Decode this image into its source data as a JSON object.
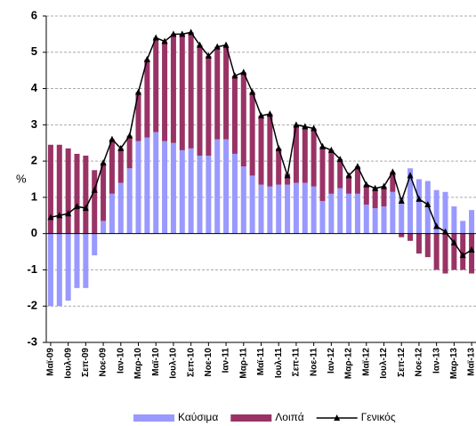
{
  "chart_data": {
    "type": "bar_line",
    "y_label": "%",
    "categories": [
      "Μαϊ-09",
      null,
      "Ιουλ-09",
      null,
      "Σεπ-09",
      null,
      "Νοε-09",
      null,
      "Ιαν-10",
      null,
      "Μαρ-10",
      null,
      "Μαϊ-10",
      null,
      "Ιουλ-10",
      null,
      "Σεπ-10",
      null,
      "Νοε-10",
      null,
      "Ιαν-11",
      null,
      "Μαρ-11",
      null,
      "Μαϊ-11",
      null,
      "Ιουλ-11",
      null,
      "Σεπ-11",
      null,
      "Νοε-11",
      null,
      "Ιαν-12",
      null,
      "Μαρ-12",
      null,
      "Μαϊ-12",
      null,
      "Ιουλ-12",
      null,
      "Σεπ-12",
      null,
      "Νοε-12",
      null,
      "Ιαν-13",
      null,
      "Μαρ-13",
      null,
      "Μαϊ-13"
    ],
    "series": [
      {
        "name": "Καύσιμα",
        "color": "#9999ff",
        "kind": "bar",
        "values": [
          -2.0,
          -2.0,
          -1.85,
          -1.5,
          -1.5,
          -0.6,
          0.35,
          1.1,
          1.4,
          1.8,
          2.55,
          2.65,
          2.8,
          2.55,
          2.5,
          2.3,
          2.35,
          2.15,
          2.15,
          2.6,
          2.6,
          2.2,
          1.85,
          1.6,
          1.35,
          1.3,
          1.35,
          1.35,
          1.4,
          1.4,
          1.3,
          0.9,
          1.1,
          1.25,
          1.1,
          1.1,
          0.8,
          0.7,
          0.75,
          1.15,
          1.0,
          1.8,
          1.5,
          1.45,
          1.2,
          1.15,
          0.75,
          0.35,
          0.65
        ]
      },
      {
        "name": "Λοιπά",
        "color": "#993366",
        "kind": "bar",
        "values": [
          2.45,
          2.45,
          2.35,
          2.2,
          2.15,
          1.75,
          1.6,
          1.5,
          0.95,
          0.9,
          1.35,
          2.15,
          2.6,
          2.75,
          3.0,
          3.2,
          3.2,
          3.05,
          2.75,
          2.55,
          2.55,
          2.15,
          2.6,
          2.3,
          1.9,
          2.0,
          1.0,
          0.3,
          1.6,
          1.55,
          1.6,
          1.5,
          1.2,
          0.8,
          0.5,
          0.75,
          0.55,
          0.55,
          0.55,
          0.55,
          -0.1,
          -0.2,
          -0.55,
          -0.65,
          -1.0,
          -1.1,
          -1.0,
          -1.0,
          -1.1
        ]
      },
      {
        "name": "Γενικός",
        "color": "#000000",
        "kind": "line",
        "values": [
          0.45,
          0.5,
          0.55,
          0.75,
          0.7,
          1.2,
          1.95,
          2.6,
          2.35,
          2.7,
          3.9,
          4.8,
          5.4,
          5.3,
          5.5,
          5.5,
          5.55,
          5.2,
          4.9,
          5.15,
          5.2,
          4.35,
          4.45,
          3.9,
          3.25,
          3.3,
          2.35,
          1.6,
          3.0,
          2.95,
          2.9,
          2.4,
          2.3,
          2.05,
          1.6,
          1.85,
          1.35,
          1.25,
          1.3,
          1.7,
          0.9,
          1.6,
          0.95,
          0.8,
          0.2,
          0.05,
          -0.25,
          -0.6,
          -0.45
        ]
      }
    ],
    "ylim": [
      -3,
      6
    ],
    "yticks": [
      -3,
      -2,
      -1,
      0,
      1,
      2,
      3,
      4,
      5,
      6
    ],
    "grid": true,
    "legend": "bottom"
  }
}
